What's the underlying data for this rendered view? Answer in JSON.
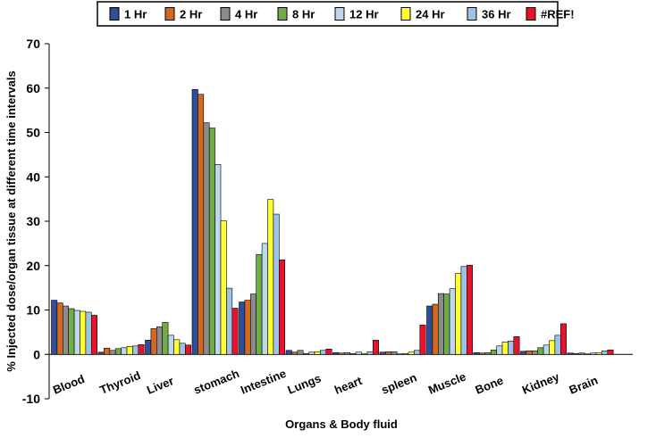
{
  "chart_data": {
    "type": "bar",
    "xlabel": "Organs & Body fluid",
    "ylabel": "% Injected dose/organ tissue at different time intervals",
    "ylim": [
      -10,
      70
    ],
    "yticks": [
      -10,
      0,
      10,
      20,
      30,
      40,
      50,
      60,
      70
    ],
    "grid": false,
    "legend_position": "top",
    "categories": [
      "Blood",
      "Thyroid",
      "Liver",
      "stomach",
      "Intestine",
      "Lungs",
      "heart",
      "spleen",
      "Muscle",
      "Bone",
      "Kidney",
      "Brain"
    ],
    "series": [
      {
        "name": "1 Hr",
        "color": "#2E4D9B",
        "values": [
          12.2,
          0.5,
          3.2,
          59.7,
          11.8,
          0.9,
          0.4,
          0.5,
          10.9,
          0.4,
          0.7,
          0.3
        ]
      },
      {
        "name": "2 Hr",
        "color": "#D2691E",
        "values": [
          11.6,
          1.4,
          5.8,
          58.6,
          12.2,
          0.5,
          0.3,
          0.6,
          11.3,
          0.3,
          0.8,
          0.2
        ]
      },
      {
        "name": "4 Hr",
        "color": "#8C8C8C",
        "values": [
          10.9,
          0.9,
          6.2,
          52.2,
          13.6,
          0.9,
          0.4,
          0.6,
          13.7,
          0.4,
          0.8,
          0.3
        ]
      },
      {
        "name": "8 Hr",
        "color": "#70AD47",
        "values": [
          10.3,
          1.3,
          7.2,
          51.0,
          22.5,
          0.2,
          0.2,
          0.1,
          13.6,
          1.0,
          1.5,
          0.1
        ]
      },
      {
        "name": "12 Hr",
        "color": "#BDD7EE",
        "values": [
          9.9,
          1.5,
          4.3,
          42.8,
          25.0,
          0.5,
          0.5,
          0.2,
          14.8,
          1.9,
          2.1,
          0.3
        ]
      },
      {
        "name": "24 Hr",
        "color": "#FFFF33",
        "values": [
          9.7,
          1.8,
          3.3,
          30.1,
          34.9,
          0.6,
          0.2,
          0.5,
          18.2,
          2.8,
          3.1,
          0.4
        ]
      },
      {
        "name": "36 Hr",
        "color": "#9DC3E6",
        "values": [
          9.5,
          1.9,
          2.5,
          14.9,
          31.6,
          0.9,
          0.6,
          0.9,
          19.8,
          3.0,
          4.3,
          0.8
        ]
      },
      {
        "name": "#REF!",
        "color": "#E8132B",
        "values": [
          8.8,
          2.2,
          2.1,
          10.4,
          21.3,
          1.2,
          3.2,
          6.6,
          20.1,
          4.0,
          6.9,
          1.0
        ]
      }
    ]
  }
}
